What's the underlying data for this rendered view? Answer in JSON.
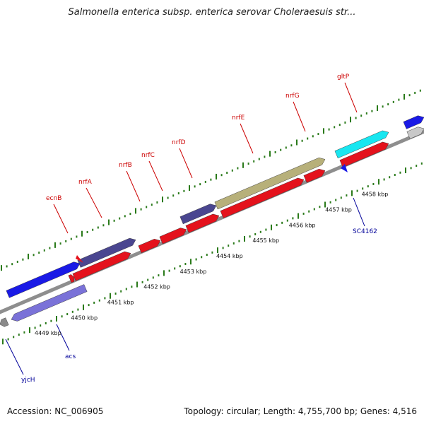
{
  "title": "Salmonella enterica subsp. enterica serovar Choleraesuis str...",
  "footer": {
    "accession": "Accession: NC_006905",
    "topology": "Topology: circular; Length: 4,755,700 bp; Genes: 4,516"
  },
  "colors": {
    "red": "#e4121c",
    "navy": "#4a4690",
    "olive": "#b7b07a",
    "cyan": "#18e6f0",
    "blue": "#1a1ae6",
    "lavender": "#7a72d8",
    "gray": "#8a8a8a",
    "lightgray": "#c8c8c8",
    "redLabel": "#cc0000",
    "blueLabel": "#000099",
    "tickGreen": "#2a7a1a"
  },
  "scale": {
    "labels": [
      "4449 kbp",
      "4450 kbp",
      "4451 kbp",
      "4452 kbp",
      "4453 kbp",
      "4454 kbp",
      "4455 kbp",
      "4456 kbp",
      "4457 kbp",
      "4458 kbp"
    ]
  },
  "genes_forward": [
    {
      "name": "ecnB",
      "s": 99,
      "e": 105,
      "color": "red",
      "track": "inner"
    },
    {
      "name": "nrfA",
      "s": 105,
      "e": 185,
      "color": "red",
      "track": "inner"
    },
    {
      "name": "nrfB",
      "s": 198,
      "e": 227,
      "color": "red",
      "track": "inner"
    },
    {
      "name": "nrfC",
      "s": 228,
      "e": 264,
      "color": "red",
      "track": "inner"
    },
    {
      "name": "nrfD",
      "s": 265,
      "e": 310,
      "color": "red",
      "track": "inner"
    },
    {
      "name": "nrfE",
      "s": 314,
      "e": 430,
      "color": "red",
      "track": "inner"
    },
    {
      "name": "nrfG",
      "s": 432,
      "e": 460,
      "color": "red",
      "track": "inner"
    },
    {
      "name": "gltP",
      "s": 483,
      "e": 550,
      "color": "red",
      "track": "inner"
    },
    {
      "name": "",
      "s": 112,
      "e": 192,
      "color": "navy",
      "track": "outer"
    },
    {
      "name": "",
      "s": 257,
      "e": 306,
      "color": "navy",
      "track": "outer"
    },
    {
      "name": "",
      "s": 306,
      "e": 460,
      "color": "olive",
      "track": "outer"
    },
    {
      "name": "",
      "s": 476,
      "e": 550,
      "color": "cyan",
      "track": "outer"
    },
    {
      "name": "",
      "s": 11,
      "e": 113,
      "color": "blue",
      "track": "outer"
    },
    {
      "name": "",
      "s": 573,
      "e": 600,
      "color": "blue",
      "track": "outer"
    },
    {
      "name": "",
      "s": 578,
      "e": 600,
      "color": "lightgray",
      "track": "inner"
    }
  ],
  "genes_reverse": [
    {
      "name": "yjcH",
      "s": 0,
      "e": 10,
      "color": "gray"
    },
    {
      "name": "acs",
      "s": 16,
      "e": 121,
      "color": "lavender"
    }
  ],
  "labels_top": [
    {
      "text": "ecnB"
    },
    {
      "text": "nrfA"
    },
    {
      "text": "nrfB"
    },
    {
      "text": "nrfC"
    },
    {
      "text": "nrfD"
    },
    {
      "text": "nrfE"
    },
    {
      "text": "nrfG"
    },
    {
      "text": "gltP"
    }
  ],
  "labels_bottom": [
    {
      "text": "acs"
    },
    {
      "text": "yjcH"
    },
    {
      "text": "SC4162"
    }
  ]
}
